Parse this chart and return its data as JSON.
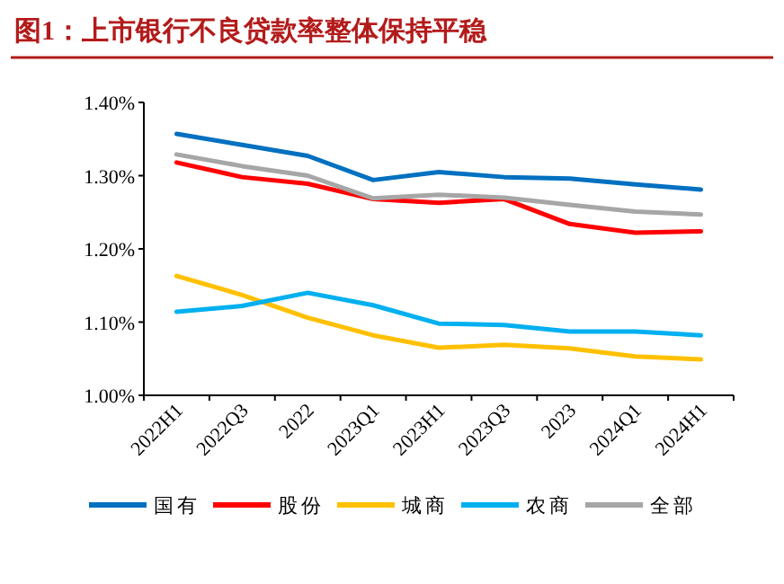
{
  "chart_data": {
    "type": "line",
    "title": "图1：上市银行不良贷款率整体保持平稳",
    "categories": [
      "2022H1",
      "2022Q3",
      "2022",
      "2023Q1",
      "2023H1",
      "2023Q3",
      "2023",
      "2024Q1",
      "2024H1"
    ],
    "series": [
      {
        "name": "国有",
        "color": "#0070c0",
        "values": [
          1.357,
          1.342,
          1.327,
          1.294,
          1.305,
          1.298,
          1.296,
          1.288,
          1.281
        ]
      },
      {
        "name": "股份",
        "color": "#ff0000",
        "values": [
          1.318,
          1.298,
          1.289,
          1.268,
          1.263,
          1.268,
          1.234,
          1.222,
          1.224
        ]
      },
      {
        "name": "城商",
        "color": "#ffc000",
        "values": [
          1.163,
          1.137,
          1.106,
          1.082,
          1.065,
          1.069,
          1.064,
          1.053,
          1.049
        ]
      },
      {
        "name": "农商",
        "color": "#00b0f0",
        "values": [
          1.114,
          1.122,
          1.14,
          1.123,
          1.098,
          1.096,
          1.087,
          1.087,
          1.082
        ]
      },
      {
        "name": "全部",
        "color": "#a6a6a6",
        "values": [
          1.329,
          1.313,
          1.3,
          1.269,
          1.274,
          1.27,
          1.26,
          1.251,
          1.247
        ]
      }
    ],
    "ylim": [
      1.0,
      1.4
    ],
    "yticks": [
      {
        "value": 1.0,
        "label": "1.00%"
      },
      {
        "value": 1.1,
        "label": "1.10%"
      },
      {
        "value": 1.2,
        "label": "1.20%"
      },
      {
        "value": 1.3,
        "label": "1.30%"
      },
      {
        "value": 1.4,
        "label": "1.40%"
      }
    ],
    "grid": false,
    "legend": "bottom",
    "marker": "none",
    "line_style": "solid"
  }
}
